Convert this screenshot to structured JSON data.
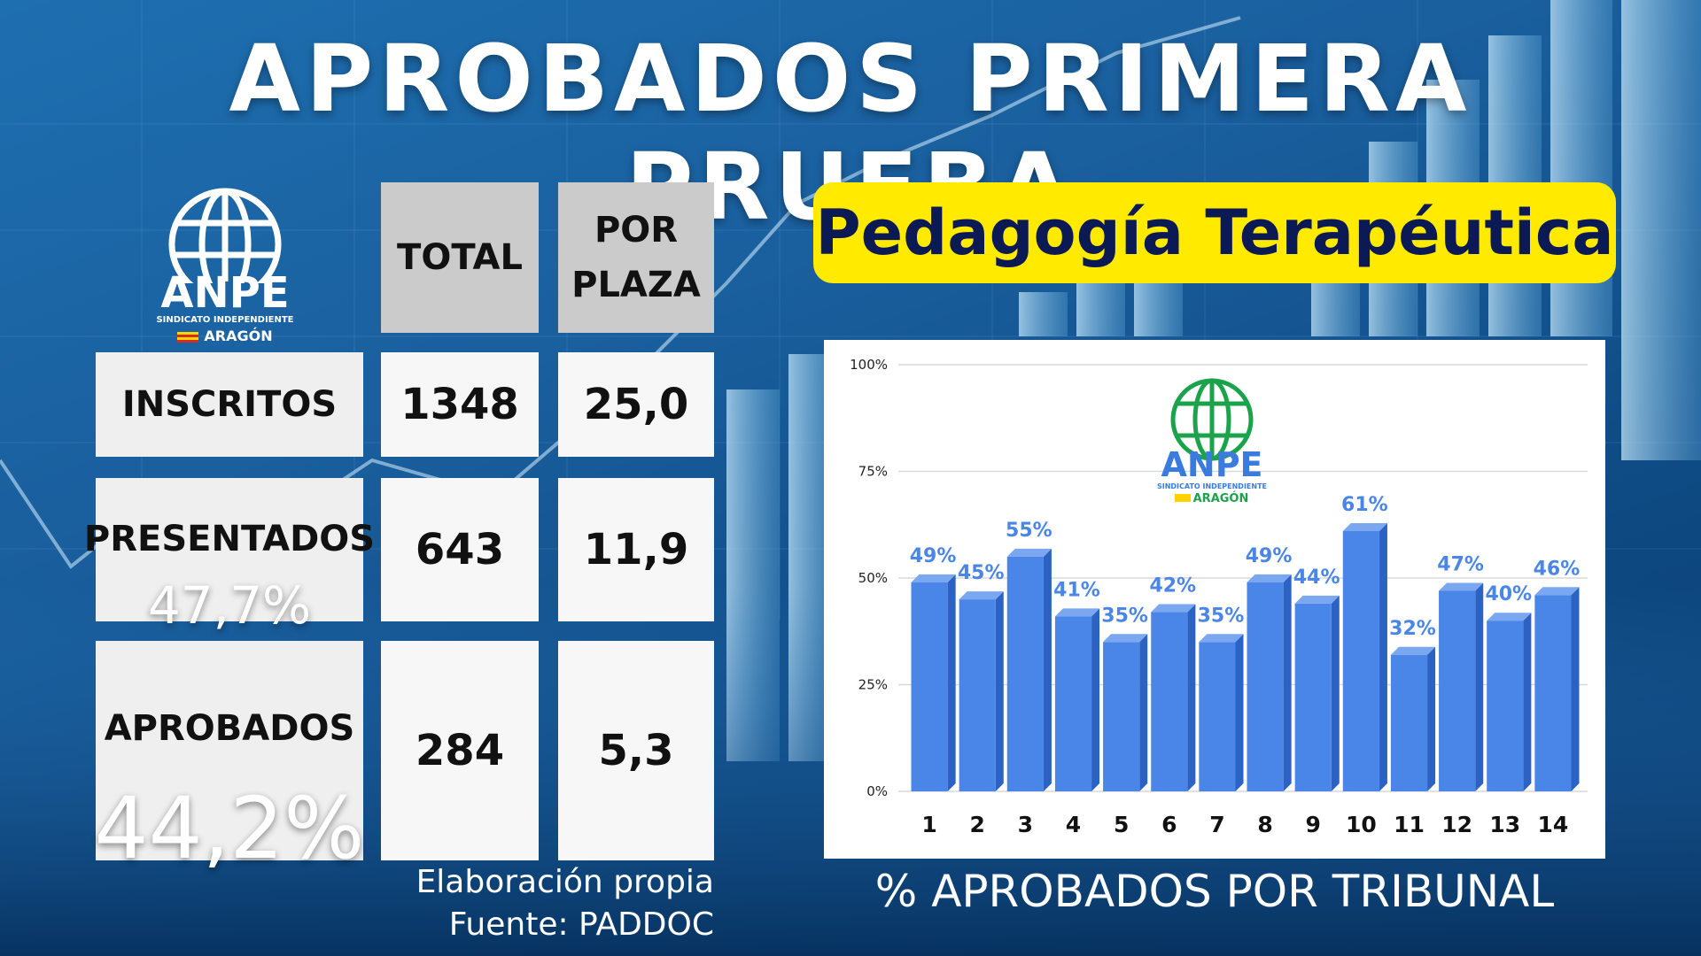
{
  "header": {
    "title": "APROBADOS PRIMERA PRUEBA",
    "subtitle": "Pedagogía Terapéutica"
  },
  "logo": {
    "name": "ANPE",
    "tagline": "SINDICATO INDEPENDIENTE",
    "region": "ARAGÓN"
  },
  "table": {
    "columns": [
      [
        "TOTAL"
      ],
      [
        "POR",
        "PLAZA"
      ]
    ],
    "rows": [
      {
        "label": "INSCRITOS",
        "total": "1348",
        "per_place": "25,0",
        "pct": ""
      },
      {
        "label": "PRESENTADOS",
        "total": "643",
        "per_place": "11,9",
        "pct": "47,7%"
      },
      {
        "label": "APROBADOS",
        "total": "284",
        "per_place": "5,3",
        "pct": "44,2%"
      }
    ]
  },
  "notes": {
    "line1": "Elaboración propia",
    "line2": "Fuente: PADDOC"
  },
  "colors": {
    "bar": "#4a86e8",
    "bar_top": "#7aa7f0",
    "bar_side": "#2c62c4",
    "label": "#4a86e8",
    "highlight": "#ffea00",
    "logo_green": "#1aa34a"
  },
  "chart_data": {
    "type": "bar",
    "title": "% APROBADOS POR TRIBUNAL",
    "categories": [
      "1",
      "2",
      "3",
      "4",
      "5",
      "6",
      "7",
      "8",
      "9",
      "10",
      "11",
      "12",
      "13",
      "14"
    ],
    "values": [
      49,
      45,
      55,
      41,
      35,
      42,
      35,
      49,
      44,
      61,
      32,
      47,
      40,
      46
    ],
    "value_labels": [
      "49%",
      "45%",
      "55%",
      "41%",
      "35%",
      "42%",
      "35%",
      "49%",
      "44%",
      "61%",
      "32%",
      "47%",
      "40%",
      "46%"
    ],
    "ylim": [
      0,
      100
    ],
    "yticks": [
      "0%",
      "25%",
      "50%",
      "75%",
      "100%"
    ],
    "grid": true,
    "legend": "none"
  }
}
